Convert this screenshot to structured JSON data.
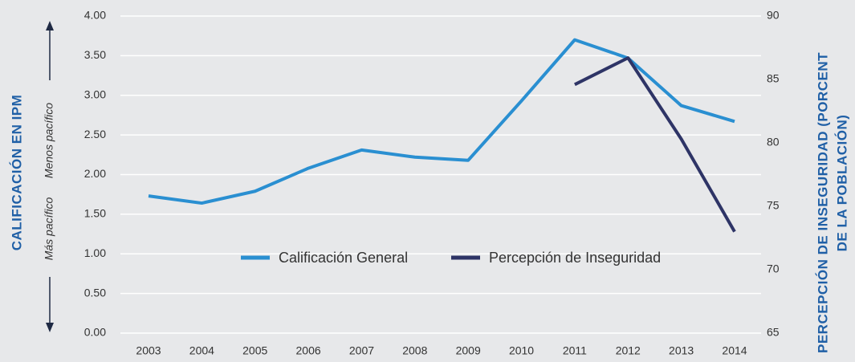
{
  "chart_data": {
    "type": "line",
    "ylabel": "CALIFICACIÓN EN IPM",
    "ylabel_notes": [
      "Menos pacífico",
      "Más pacífico"
    ],
    "y2label": [
      "PERCEPCIÓN DE INSEGURIDAD (PORCENT",
      "DE LA POBLACIÓN)"
    ],
    "categories": [
      "2003",
      "2004",
      "2005",
      "2006",
      "2007",
      "2008",
      "2009",
      "2010",
      "2011",
      "2012",
      "2013",
      "2014"
    ],
    "series": [
      {
        "name": "Calificación General",
        "color": "#2a8fd1",
        "values": [
          1.73,
          1.64,
          1.79,
          2.08,
          2.31,
          2.22,
          2.18,
          2.93,
          3.7,
          3.47,
          2.87,
          2.67
        ]
      },
      {
        "name": "Percepción de Inseguridad",
        "color": "#2e3466",
        "axis": "y2",
        "values": [
          null,
          null,
          null,
          null,
          null,
          null,
          null,
          null,
          84.6,
          86.7,
          80.3,
          73.0
        ]
      }
    ],
    "ylim": [
      0,
      4
    ],
    "yticks": [
      {
        "value": 0,
        "label": "0.00"
      },
      {
        "value": 0.5,
        "label": "0.50"
      },
      {
        "value": 1,
        "label": "1.00"
      },
      {
        "value": 1.5,
        "label": "1.50"
      },
      {
        "value": 2,
        "label": "2.00"
      },
      {
        "value": 2.5,
        "label": "2.50"
      },
      {
        "value": 3,
        "label": "3.00"
      },
      {
        "value": 3.5,
        "label": "3.50"
      },
      {
        "value": 4,
        "label": "4.00"
      }
    ],
    "y2lim": [
      65,
      90
    ],
    "y2ticks": [
      65,
      70,
      75,
      80,
      85,
      90
    ],
    "grid": true,
    "legend": "center"
  }
}
